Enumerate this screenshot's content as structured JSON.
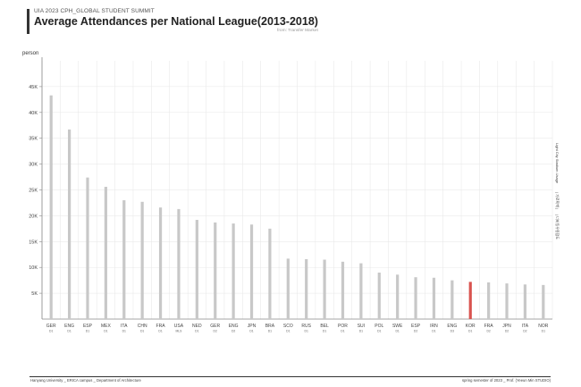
{
  "header": {
    "supertitle": "UIA 2023 CPH_GLOBAL STUDENT SUMMIT",
    "title": "Average Attendances per National League(2013-2018)",
    "source": "from: Transfer Market"
  },
  "footer": {
    "left": "Hanyang University _ ERICA campus _ Department of Architecture",
    "right": "spring semester of 2023 _ Prof. (Yeeun Min STUDIO)"
  },
  "colors": {
    "bar": "#c8c8c8",
    "highlight": "#d9534f",
    "grid": "#e6e6e6",
    "axis": "#888888"
  },
  "side_note": [
    "Light City Stadium Usage",
    "| 가로획백 |",
    "| 너비등우종합도"
  ],
  "chart_data": {
    "type": "bar",
    "ylabel": "person",
    "ylim": [
      0,
      50000
    ],
    "yticks": [
      {
        "value": 5000,
        "label": "5K"
      },
      {
        "value": 10000,
        "label": "10K"
      },
      {
        "value": 15000,
        "label": "15K"
      },
      {
        "value": 20000,
        "label": "20K"
      },
      {
        "value": 25000,
        "label": "25K"
      },
      {
        "value": 30000,
        "label": "30K"
      },
      {
        "value": 35000,
        "label": "35K"
      },
      {
        "value": 40000,
        "label": "40K"
      },
      {
        "value": 45000,
        "label": "45K"
      }
    ],
    "grid": true,
    "highlight_category": "KOR",
    "categories": [
      "GER",
      "ENG",
      "ESP",
      "MEX",
      "ITA",
      "CHN",
      "FRA",
      "USA",
      "NED",
      "GER",
      "ENG",
      "JPN",
      "BRA",
      "SCO",
      "RUS",
      "BEL",
      "POR",
      "SUI",
      "POL",
      "SWE",
      "ESP",
      "IRN",
      "ENG",
      "KOR",
      "FRA",
      "JPN",
      "ITA",
      "NOR"
    ],
    "sublabels": [
      "D1",
      "D1",
      "D1",
      "D1",
      "D1",
      "D1",
      "D1",
      "MLS",
      "D1",
      "D2",
      "D2",
      "D1",
      "D1",
      "D1",
      "D1",
      "D1",
      "D1",
      "D1",
      "D1",
      "D1",
      "D2",
      "D1",
      "D3",
      "D1",
      "D2",
      "D2",
      "D2",
      "D1"
    ],
    "values": [
      43300,
      36700,
      27400,
      25600,
      23000,
      22700,
      21600,
      21300,
      19200,
      18700,
      18500,
      18300,
      17500,
      11700,
      11600,
      11500,
      11100,
      10800,
      9000,
      8600,
      8100,
      8000,
      7500,
      7200,
      7100,
      6900,
      6700,
      6600
    ]
  }
}
